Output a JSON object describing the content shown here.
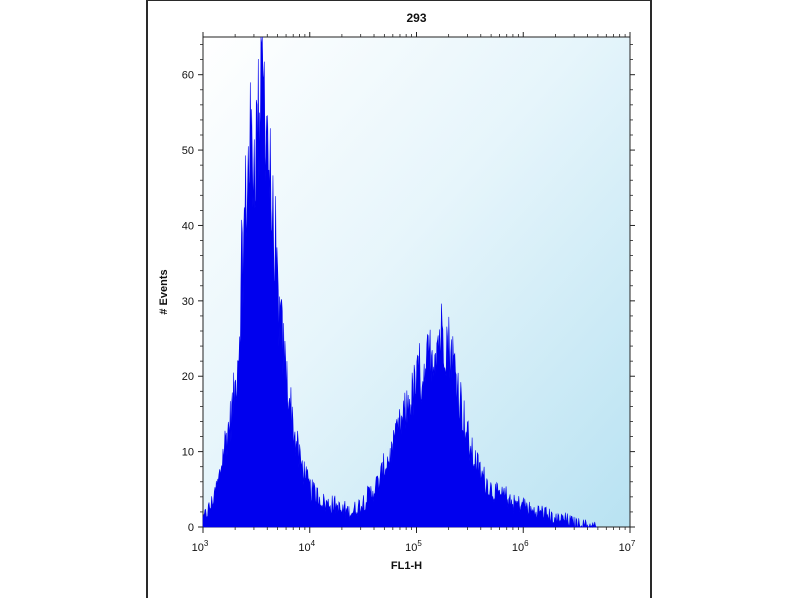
{
  "chart_data": {
    "type": "histogram",
    "title": "293",
    "xlabel": "FL1-H",
    "ylabel": "# Events",
    "x_scale": "log",
    "xlim": [
      1000,
      10000000
    ],
    "ylim": [
      0,
      65
    ],
    "x_ticks": [
      {
        "value": 1000,
        "base": "10",
        "exp": "3"
      },
      {
        "value": 10000,
        "base": "10",
        "exp": "4"
      },
      {
        "value": 100000,
        "base": "10",
        "exp": "5"
      },
      {
        "value": 1000000,
        "base": "10",
        "exp": "6"
      },
      {
        "value": 10000000,
        "base": "10",
        "exp": "7"
      }
    ],
    "y_ticks": [
      0,
      10,
      20,
      30,
      40,
      50,
      60
    ],
    "grid": false,
    "series": [
      {
        "fill_color": "#0000ee",
        "x": [
          1000,
          1200,
          1400,
          1600,
          1800,
          2000,
          2200,
          2400,
          2600,
          2800,
          3000,
          3200,
          3400,
          3600,
          3800,
          4000,
          4200,
          4500,
          4800,
          5200,
          5600,
          6000,
          6500,
          7000,
          7500,
          8000,
          9000,
          10000,
          12000,
          14000,
          17000,
          20000,
          25000,
          30000,
          35000,
          40000,
          45000,
          50000,
          60000,
          70000,
          80000,
          90000,
          100000,
          120000,
          140000,
          160000,
          180000,
          200000,
          220000,
          250000,
          280000,
          320000,
          400000,
          500000,
          600000,
          700000,
          800000,
          1000000,
          1200000,
          1500000,
          2000000,
          2500000,
          3000000,
          3500000,
          5000000
        ],
        "y": [
          1,
          3,
          6,
          11,
          14,
          18,
          26,
          38,
          46,
          50,
          49,
          52,
          55,
          60,
          57,
          53,
          47,
          40,
          34,
          28,
          24,
          20,
          17,
          13,
          11,
          9,
          7,
          5,
          4,
          3,
          3,
          2,
          2,
          3,
          4,
          5,
          6,
          8,
          10,
          13,
          15,
          17,
          19,
          21,
          23,
          25,
          26,
          24,
          22,
          18,
          14,
          10,
          7,
          5,
          4,
          4,
          3,
          3,
          2,
          2,
          1,
          1,
          0.5,
          0.3,
          0
        ]
      }
    ]
  }
}
